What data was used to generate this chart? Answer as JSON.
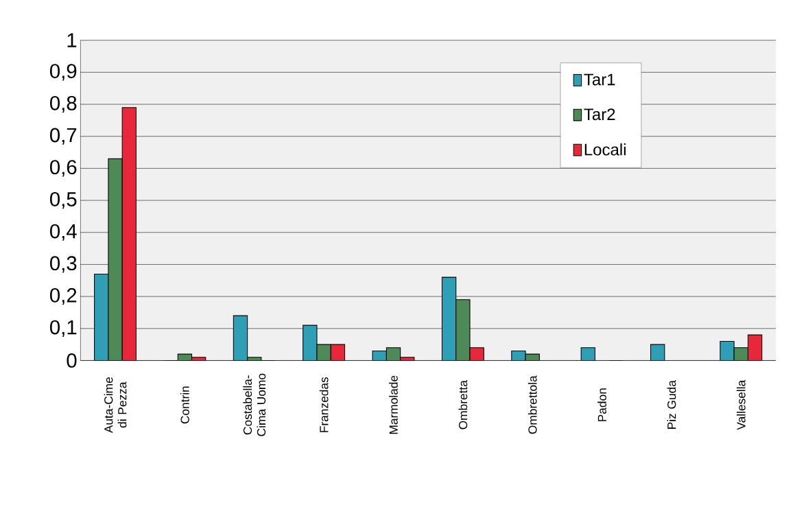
{
  "chart_data": {
    "type": "bar",
    "categories": [
      "Auta-Cime di Pezza",
      "Contrin",
      "Costabella-Cima Uomo",
      "Franzedas",
      "Marmolade",
      "Ombretta",
      "Ombrettola",
      "Padon",
      "Piz Guda",
      "Vallesella"
    ],
    "series": [
      {
        "name": "Tar1",
        "color": "#2e9fb5",
        "values": [
          0.27,
          0,
          0.14,
          0.11,
          0.03,
          0.26,
          0.03,
          0.04,
          0.05,
          0.06
        ]
      },
      {
        "name": "Tar2",
        "color": "#4e8a57",
        "values": [
          0.63,
          0.02,
          0.01,
          0.05,
          0.04,
          0.19,
          0.02,
          null,
          null,
          0.04
        ]
      },
      {
        "name": "Locali",
        "color": "#e8283a",
        "values": [
          0.79,
          0.01,
          0,
          0.05,
          0.01,
          0.04,
          null,
          0,
          null,
          0.08
        ]
      }
    ],
    "ylim": [
      0,
      1
    ],
    "yticks": [
      0,
      {
        "value": 0.1,
        "label": "0,1"
      },
      {
        "value": 0.2,
        "label": "0,2"
      },
      {
        "value": 0.3,
        "label": "0,3"
      },
      {
        "value": 0.4,
        "label": "0,4"
      },
      {
        "value": 0.5,
        "label": "0,5"
      },
      {
        "value": 0.6,
        "label": "0,6"
      },
      {
        "value": 0.7,
        "label": "0,7"
      },
      {
        "value": 0.8,
        "label": "0,8"
      },
      {
        "value": 0.9,
        "label": "0,9"
      },
      1
    ],
    "grid": "y",
    "legend": "top right"
  }
}
